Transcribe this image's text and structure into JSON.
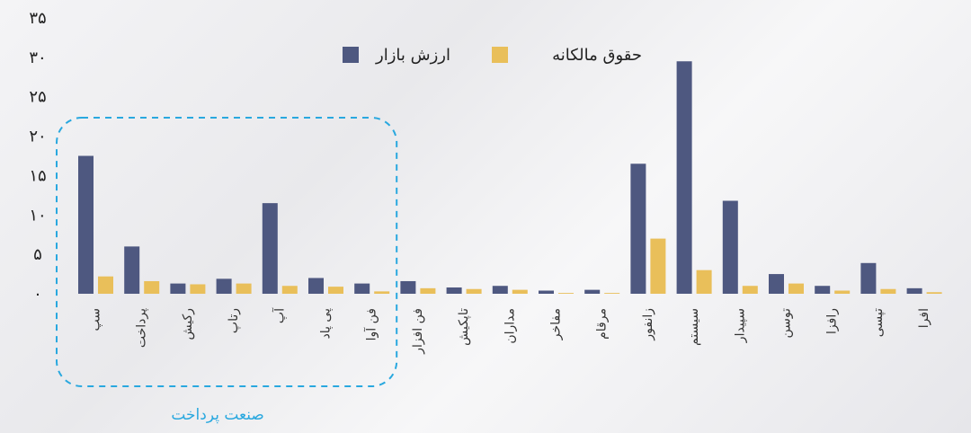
{
  "chart_data": {
    "type": "bar",
    "categories": [
      "سپ",
      "پرداخت",
      "رکیش",
      "رتاپ",
      "آپ",
      "پی پاد",
      "فن آوا",
      "فن افزار",
      "تاپکیش",
      "مداران",
      "مفاخر",
      "مرقام",
      "زانفور",
      "سیستم",
      "سپیدار",
      "توسن",
      "رافزا",
      "تپسی",
      "افرا"
    ],
    "series": [
      {
        "name": "ارزش بازار",
        "color": "#4e5880",
        "values": [
          17.5,
          6,
          1.3,
          1.9,
          11.5,
          2,
          1.3,
          1.6,
          0.8,
          1,
          0.4,
          0.5,
          16.5,
          29.5,
          11.8,
          2.5,
          1,
          3.9,
          0.7
        ]
      },
      {
        "name": "حقوق مالکانه",
        "color": "#e9bf5a",
        "values": [
          2.2,
          1.6,
          1.2,
          1.3,
          1,
          0.9,
          0.3,
          0.7,
          0.6,
          0.5,
          0.1,
          0.1,
          7,
          3,
          1,
          1.3,
          0.4,
          0.6,
          0.2
        ]
      }
    ],
    "yticks": [
      "۳۵",
      "۳۰",
      "۲۵",
      "۲۰",
      "۱۵",
      "۱۰",
      "۵",
      "۰"
    ],
    "ylim": [
      0,
      35
    ],
    "legend_position": "top",
    "group_annotation": {
      "label": "صنعت پرداخت",
      "start_index": 0,
      "end_index": 6,
      "border_color": "#29a8df"
    }
  }
}
